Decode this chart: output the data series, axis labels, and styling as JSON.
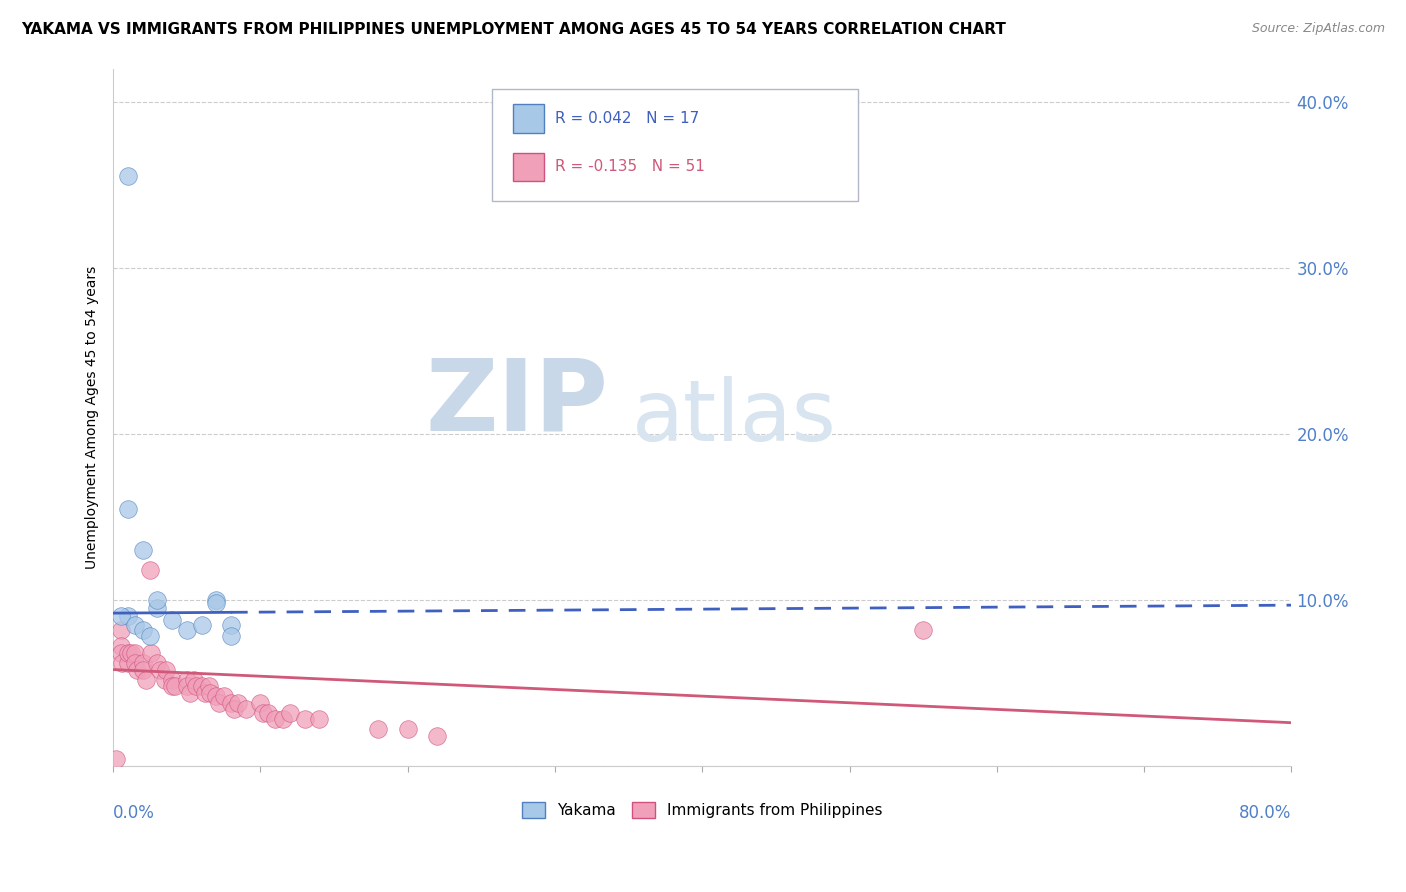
{
  "title": "YAKAMA VS IMMIGRANTS FROM PHILIPPINES UNEMPLOYMENT AMONG AGES 45 TO 54 YEARS CORRELATION CHART",
  "source": "Source: ZipAtlas.com",
  "ylabel": "Unemployment Among Ages 45 to 54 years",
  "watermark": "ZIPatlas",
  "legend_entry_yakama": "R = 0.042   N = 17",
  "legend_entry_philippines": "R = -0.135   N = 51",
  "legend_labels": [
    "Yakama",
    "Immigrants from Philippines"
  ],
  "yakama_color": "#a8c8e8",
  "philippines_color": "#f0a0b8",
  "yakama_edge_color": "#5080c0",
  "philippines_edge_color": "#d05080",
  "yakama_trend_color": "#4060c0",
  "philippines_trend_color": "#d05878",
  "yakama_points": [
    [
      0.01,
      0.355
    ],
    [
      0.01,
      0.155
    ],
    [
      0.02,
      0.13
    ],
    [
      0.01,
      0.09
    ],
    [
      0.005,
      0.09
    ],
    [
      0.015,
      0.085
    ],
    [
      0.02,
      0.082
    ],
    [
      0.03,
      0.095
    ],
    [
      0.03,
      0.1
    ],
    [
      0.025,
      0.078
    ],
    [
      0.04,
      0.088
    ],
    [
      0.05,
      0.082
    ],
    [
      0.06,
      0.085
    ],
    [
      0.07,
      0.1
    ],
    [
      0.07,
      0.098
    ],
    [
      0.08,
      0.085
    ],
    [
      0.08,
      0.078
    ]
  ],
  "philippines_points": [
    [
      0.005,
      0.082
    ],
    [
      0.005,
      0.072
    ],
    [
      0.005,
      0.068
    ],
    [
      0.006,
      0.062
    ],
    [
      0.01,
      0.062
    ],
    [
      0.01,
      0.068
    ],
    [
      0.012,
      0.068
    ],
    [
      0.015,
      0.068
    ],
    [
      0.015,
      0.062
    ],
    [
      0.016,
      0.058
    ],
    [
      0.02,
      0.062
    ],
    [
      0.02,
      0.058
    ],
    [
      0.022,
      0.052
    ],
    [
      0.025,
      0.118
    ],
    [
      0.026,
      0.068
    ],
    [
      0.03,
      0.062
    ],
    [
      0.032,
      0.058
    ],
    [
      0.035,
      0.052
    ],
    [
      0.036,
      0.058
    ],
    [
      0.04,
      0.052
    ],
    [
      0.04,
      0.048
    ],
    [
      0.042,
      0.048
    ],
    [
      0.05,
      0.052
    ],
    [
      0.05,
      0.048
    ],
    [
      0.052,
      0.044
    ],
    [
      0.055,
      0.052
    ],
    [
      0.056,
      0.048
    ],
    [
      0.06,
      0.048
    ],
    [
      0.062,
      0.044
    ],
    [
      0.065,
      0.048
    ],
    [
      0.066,
      0.044
    ],
    [
      0.07,
      0.042
    ],
    [
      0.072,
      0.038
    ],
    [
      0.075,
      0.042
    ],
    [
      0.08,
      0.038
    ],
    [
      0.082,
      0.034
    ],
    [
      0.085,
      0.038
    ],
    [
      0.09,
      0.034
    ],
    [
      0.1,
      0.038
    ],
    [
      0.102,
      0.032
    ],
    [
      0.105,
      0.032
    ],
    [
      0.11,
      0.028
    ],
    [
      0.115,
      0.028
    ],
    [
      0.12,
      0.032
    ],
    [
      0.13,
      0.028
    ],
    [
      0.14,
      0.028
    ],
    [
      0.18,
      0.022
    ],
    [
      0.2,
      0.022
    ],
    [
      0.22,
      0.018
    ],
    [
      0.55,
      0.082
    ],
    [
      0.002,
      0.004
    ]
  ],
  "xlim": [
    0.0,
    0.8
  ],
  "ylim": [
    0.0,
    0.42
  ],
  "yticks": [
    0.0,
    0.1,
    0.2,
    0.3,
    0.4
  ],
  "ytick_labels": [
    "",
    "10.0%",
    "20.0%",
    "30.0%",
    "40.0%"
  ],
  "xticks": [
    0.0,
    0.1,
    0.2,
    0.3,
    0.4,
    0.5,
    0.6,
    0.7,
    0.8
  ],
  "title_fontsize": 11,
  "source_fontsize": 9,
  "background_color": "#ffffff",
  "grid_color": "#cccccc",
  "watermark_color_zip": "#c8d8e8",
  "watermark_color_atlas": "#d8e4f0",
  "watermark_fontsize": 72,
  "yakama_trend_intercept": 0.092,
  "yakama_trend_slope": 0.006,
  "philippines_trend_intercept": 0.058,
  "philippines_trend_slope": -0.04
}
